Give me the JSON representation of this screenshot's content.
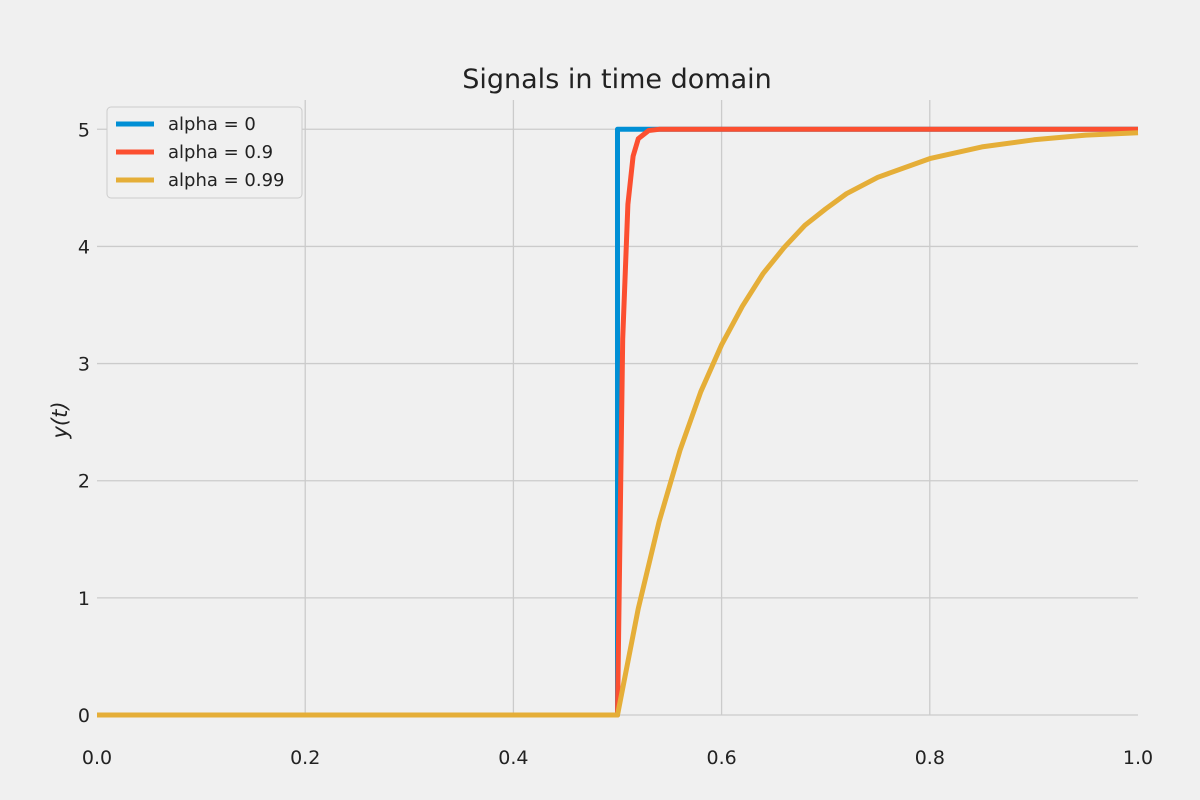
{
  "chart_data": {
    "type": "line",
    "title": "Signals in time domain",
    "xlabel": "",
    "ylabel": "y(t)",
    "xlim": [
      0,
      1
    ],
    "ylim": [
      0,
      5.25
    ],
    "grid": true,
    "legend_position": "top-left",
    "x_ticks": [
      "0.0",
      "0.2",
      "0.4",
      "0.6",
      "0.8",
      "1.0"
    ],
    "y_ticks": [
      "0",
      "1",
      "2",
      "3",
      "4",
      "5"
    ],
    "series": [
      {
        "name": "alpha = 0",
        "color": "#008fd5",
        "x": [
          0,
          0.5,
          0.5,
          1.0
        ],
        "y": [
          0,
          0,
          5,
          5
        ]
      },
      {
        "name": "alpha = 0.9",
        "color": "#fc4f30",
        "x": [
          0,
          0.5,
          0.505,
          0.51,
          0.515,
          0.52,
          0.53,
          0.54,
          0.55,
          0.56,
          0.58,
          0.6,
          0.7,
          0.8,
          0.9,
          1.0
        ],
        "y": [
          0,
          0,
          3.21,
          4.36,
          4.77,
          4.92,
          4.99,
          5.0,
          5.0,
          5.0,
          5.0,
          5.0,
          5.0,
          5.0,
          5.0,
          5.0
        ]
      },
      {
        "name": "alpha = 0.99",
        "color": "#e5ae38",
        "x": [
          0,
          0.5,
          0.52,
          0.54,
          0.56,
          0.58,
          0.6,
          0.62,
          0.64,
          0.66,
          0.68,
          0.7,
          0.72,
          0.75,
          0.8,
          0.85,
          0.9,
          0.95,
          1.0
        ],
        "y": [
          0,
          0,
          0.91,
          1.65,
          2.26,
          2.76,
          3.16,
          3.49,
          3.77,
          3.99,
          4.18,
          4.32,
          4.45,
          4.59,
          4.75,
          4.85,
          4.91,
          4.95,
          4.97
        ]
      }
    ]
  }
}
